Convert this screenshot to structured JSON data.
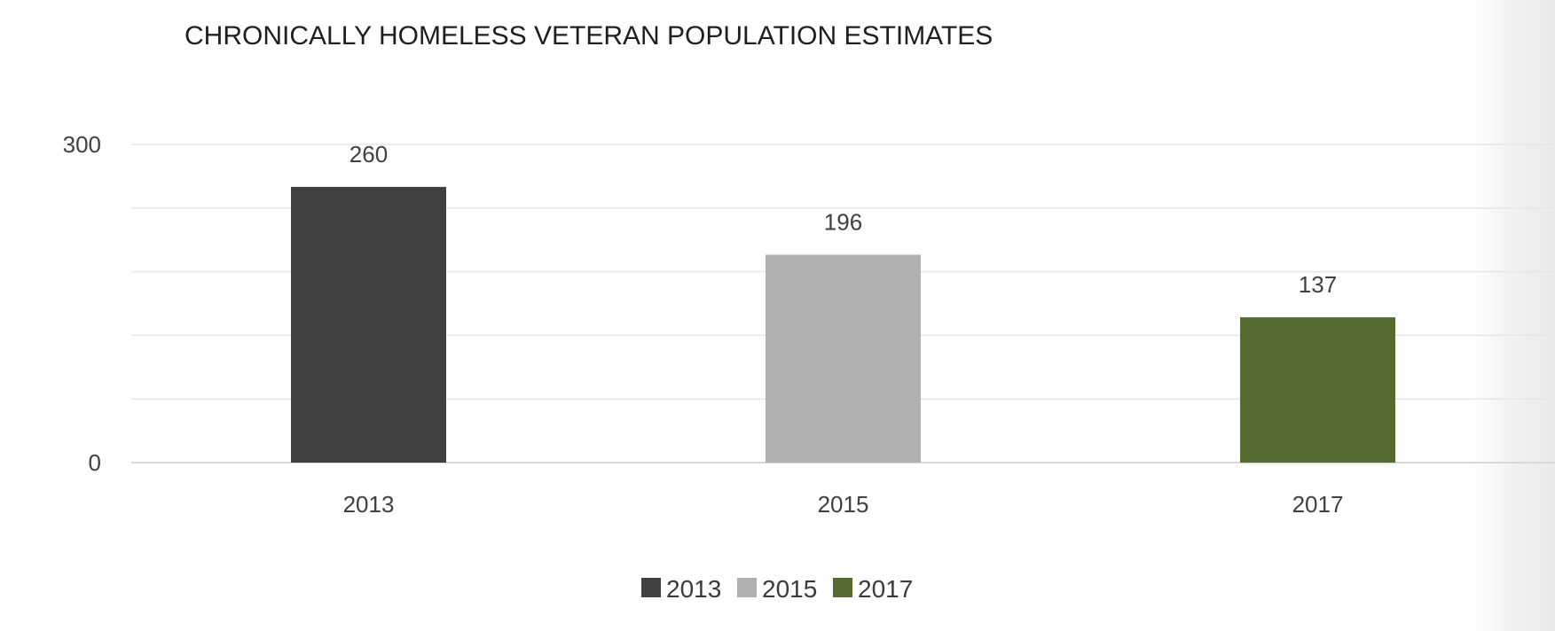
{
  "chart_data": {
    "type": "bar",
    "title": "CHRONICALLY HOMELESS VETERAN POPULATION ESTIMATES",
    "categories": [
      "2013",
      "2015",
      "2017"
    ],
    "values": [
      260,
      196,
      137
    ],
    "colors": [
      "#404040",
      "#b0b0b0",
      "#556b2f"
    ],
    "y_ticks": [
      "0",
      "300"
    ],
    "ylim": [
      0,
      300
    ],
    "grid": true,
    "legend": {
      "placement": "bottom",
      "entries": [
        "2013",
        "2015",
        "2017"
      ]
    }
  }
}
